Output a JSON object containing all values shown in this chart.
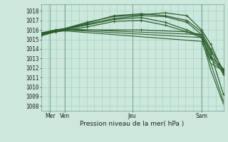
{
  "bg_color": "#cce8dd",
  "grid_color": "#99ccbb",
  "line_color": "#2d5e2d",
  "dark_line_color": "#1a3d1a",
  "ylabel_values": [
    1008,
    1009,
    1010,
    1011,
    1012,
    1013,
    1014,
    1015,
    1016,
    1017,
    1018
  ],
  "ylim": [
    1007.5,
    1018.7
  ],
  "xlim": [
    0,
    1
  ],
  "xlabel": "Pression niveau de la mer( hPa )",
  "lines": [
    {
      "x": [
        0.0,
        0.08,
        0.13,
        0.25,
        0.4,
        0.55,
        0.68,
        0.8,
        0.88,
        0.93,
        1.0
      ],
      "y": [
        1015.7,
        1016.0,
        1016.15,
        1016.8,
        1017.4,
        1017.6,
        1017.8,
        1017.5,
        1016.0,
        1014.5,
        1011.5
      ],
      "marker": true,
      "lw": 0.9
    },
    {
      "x": [
        0.0,
        0.08,
        0.13,
        0.25,
        0.4,
        0.55,
        0.68,
        0.8,
        0.88,
        0.93,
        1.0
      ],
      "y": [
        1015.6,
        1016.0,
        1016.1,
        1016.7,
        1017.5,
        1017.7,
        1017.5,
        1017.0,
        1015.8,
        1014.0,
        1011.8
      ],
      "marker": true,
      "lw": 0.9
    },
    {
      "x": [
        0.0,
        0.08,
        0.13,
        0.25,
        0.4,
        0.55,
        0.68,
        0.8,
        0.88,
        0.93,
        1.0
      ],
      "y": [
        1015.6,
        1015.95,
        1016.1,
        1016.6,
        1017.2,
        1017.5,
        1017.4,
        1016.8,
        1015.5,
        1013.5,
        1009.2
      ],
      "marker": true,
      "lw": 0.9
    },
    {
      "x": [
        0.0,
        0.08,
        0.13,
        0.25,
        0.4,
        0.55,
        0.68,
        0.8,
        0.88,
        0.93,
        1.0
      ],
      "y": [
        1015.5,
        1015.9,
        1016.05,
        1016.5,
        1017.1,
        1017.3,
        1016.8,
        1016.0,
        1015.3,
        1013.0,
        1011.6
      ],
      "marker": true,
      "lw": 0.9
    },
    {
      "x": [
        0.0,
        0.08,
        0.13,
        0.88,
        0.93,
        1.0
      ],
      "y": [
        1015.6,
        1016.0,
        1016.1,
        1015.5,
        1012.5,
        1008.5
      ],
      "marker": false,
      "lw": 0.8
    },
    {
      "x": [
        0.0,
        0.08,
        0.13,
        0.88,
        0.93,
        1.0
      ],
      "y": [
        1015.5,
        1015.9,
        1016.0,
        1015.2,
        1011.8,
        1008.2
      ],
      "marker": false,
      "lw": 0.8
    },
    {
      "x": [
        0.0,
        0.08,
        0.13,
        0.88,
        0.93,
        1.0
      ],
      "y": [
        1015.4,
        1015.8,
        1015.9,
        1014.8,
        1012.5,
        1011.7
      ],
      "marker": false,
      "lw": 0.8
    },
    {
      "x": [
        0.0,
        0.08,
        0.13,
        0.55,
        0.8,
        0.88,
        0.93,
        1.0
      ],
      "y": [
        1015.5,
        1015.85,
        1016.0,
        1016.0,
        1015.8,
        1015.5,
        1013.8,
        1011.3
      ],
      "marker": true,
      "lw": 0.9
    },
    {
      "x": [
        0.0,
        0.08,
        0.13,
        0.25,
        0.4,
        0.55,
        0.68,
        0.8,
        0.88,
        0.93,
        1.0
      ],
      "y": [
        1015.4,
        1015.8,
        1015.95,
        1016.3,
        1016.9,
        1017.0,
        1016.5,
        1015.8,
        1015.2,
        1013.2,
        1011.9
      ],
      "marker": true,
      "lw": 0.9
    }
  ],
  "xticks": [
    0.05,
    0.13,
    0.5,
    0.88
  ],
  "xtick_labels": [
    "Mer",
    "Ven",
    "Jeu",
    "Sam"
  ],
  "xvlines": [
    0.05,
    0.13,
    0.5,
    0.88
  ],
  "title_fontsize": 6,
  "tick_fontsize": 5.5,
  "xlabel_fontsize": 6.5
}
